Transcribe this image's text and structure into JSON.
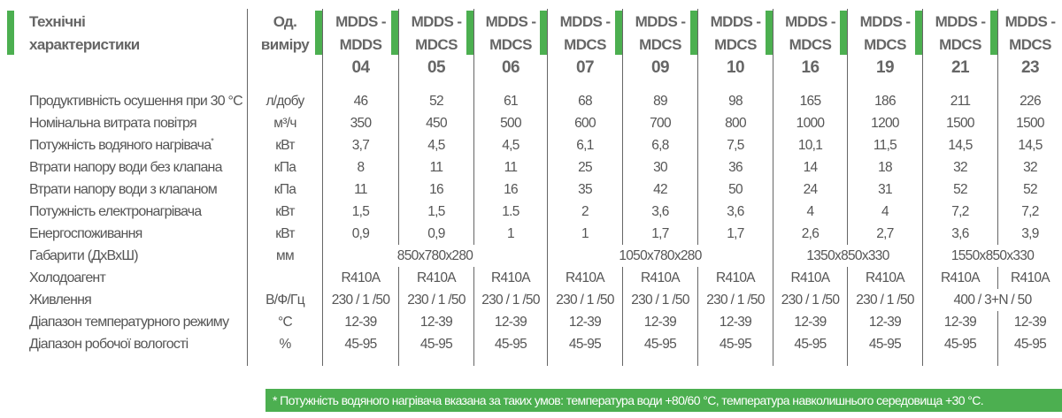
{
  "header": {
    "title": "Технічні характеристики",
    "unit": "Од. виміру",
    "models": [
      {
        "l1": "MDDS -",
        "l2": "MDDS",
        "n": "04"
      },
      {
        "l1": "MDDS -",
        "l2": "MDCS",
        "n": "05"
      },
      {
        "l1": "MDDS -",
        "l2": "MDCS",
        "n": "06"
      },
      {
        "l1": "MDDS -",
        "l2": "MDCS",
        "n": "07"
      },
      {
        "l1": "MDDS -",
        "l2": "MDCS",
        "n": "09"
      },
      {
        "l1": "MDDS -",
        "l2": "MDCS",
        "n": "10"
      },
      {
        "l1": "MDDS -",
        "l2": "MDCS",
        "n": "16"
      },
      {
        "l1": "MDDS -",
        "l2": "MDCS",
        "n": "19"
      },
      {
        "l1": "MDDS -",
        "l2": "MDCS",
        "n": "21"
      },
      {
        "l1": "MDDS -",
        "l2": "MDCS",
        "n": "23"
      }
    ]
  },
  "rows": [
    {
      "label": "Продуктивність осушення при 30 °С",
      "unit": "л/добу",
      "cells": [
        {
          "v": "46"
        },
        {
          "v": "52"
        },
        {
          "v": "61"
        },
        {
          "v": "68"
        },
        {
          "v": "89"
        },
        {
          "v": "98"
        },
        {
          "v": "165"
        },
        {
          "v": "186"
        },
        {
          "v": "211"
        },
        {
          "v": "226"
        }
      ]
    },
    {
      "label": "Номінальна витрата повітря",
      "unit": "м³/ч",
      "cells": [
        {
          "v": "350"
        },
        {
          "v": "450"
        },
        {
          "v": "500"
        },
        {
          "v": "600"
        },
        {
          "v": "700"
        },
        {
          "v": "800"
        },
        {
          "v": "1000"
        },
        {
          "v": "1200"
        },
        {
          "v": "1500"
        },
        {
          "v": "1500"
        }
      ]
    },
    {
      "label": "Потужність водяного нагрівача*",
      "unit": "кВт",
      "cells": [
        {
          "v": "3,7"
        },
        {
          "v": "4,5"
        },
        {
          "v": "4,5"
        },
        {
          "v": "6,1"
        },
        {
          "v": "6,8"
        },
        {
          "v": "7,5"
        },
        {
          "v": "10,1"
        },
        {
          "v": "11,5"
        },
        {
          "v": "14,5"
        },
        {
          "v": "14,5"
        }
      ]
    },
    {
      "label": "Втрати напору води без клапана",
      "unit": "кПа",
      "cells": [
        {
          "v": "8"
        },
        {
          "v": "11"
        },
        {
          "v": "11"
        },
        {
          "v": "25"
        },
        {
          "v": "30"
        },
        {
          "v": "36"
        },
        {
          "v": "14"
        },
        {
          "v": "18"
        },
        {
          "v": "32"
        },
        {
          "v": "32"
        }
      ]
    },
    {
      "label": "Втрати напору води з клапаном",
      "unit": "кПа",
      "cells": [
        {
          "v": "11"
        },
        {
          "v": "16"
        },
        {
          "v": "16"
        },
        {
          "v": "35"
        },
        {
          "v": "42"
        },
        {
          "v": "50"
        },
        {
          "v": "24"
        },
        {
          "v": "31"
        },
        {
          "v": "52"
        },
        {
          "v": "52"
        }
      ]
    },
    {
      "label": "Потужність електронагрівача",
      "unit": "кВт",
      "cells": [
        {
          "v": "1,5"
        },
        {
          "v": "1,5"
        },
        {
          "v": "1.5"
        },
        {
          "v": "2"
        },
        {
          "v": "3,6"
        },
        {
          "v": "3,6"
        },
        {
          "v": "4"
        },
        {
          "v": "4"
        },
        {
          "v": "7,2"
        },
        {
          "v": "7,2"
        }
      ]
    },
    {
      "label": "Енергоспоживання",
      "unit": "кВт",
      "cells": [
        {
          "v": "0,9"
        },
        {
          "v": "0,9"
        },
        {
          "v": "1"
        },
        {
          "v": "1"
        },
        {
          "v": "1,7"
        },
        {
          "v": "1,7"
        },
        {
          "v": "2,6"
        },
        {
          "v": "2,7"
        },
        {
          "v": "3,6"
        },
        {
          "v": "3,9"
        }
      ]
    },
    {
      "label": "Габарити (ДхВхШ)",
      "unit": "мм",
      "cells": [
        {
          "v": "850x780x280",
          "span": 3
        },
        {
          "v": "1050x780x280",
          "span": 3
        },
        {
          "v": "1350x850x330",
          "span": 2
        },
        {
          "v": "1550x850x330",
          "span": 2
        }
      ]
    },
    {
      "label": "Холодоагент",
      "unit": "",
      "cells": [
        {
          "v": "R410A"
        },
        {
          "v": "R410A"
        },
        {
          "v": "R410A"
        },
        {
          "v": "R410A"
        },
        {
          "v": "R410A"
        },
        {
          "v": "R410A"
        },
        {
          "v": "R410A"
        },
        {
          "v": "R410A"
        },
        {
          "v": "R410A"
        },
        {
          "v": "R410A"
        }
      ]
    },
    {
      "label": "Живлення",
      "unit": "В/Ф/Гц",
      "cells": [
        {
          "v": "230 / 1 /50"
        },
        {
          "v": "230 / 1 /50"
        },
        {
          "v": "230 / 1 /50"
        },
        {
          "v": "230 / 1 /50"
        },
        {
          "v": "230 / 1 /50"
        },
        {
          "v": "230 / 1 /50"
        },
        {
          "v": "230 / 1 /50"
        },
        {
          "v": "230 / 1 /50"
        },
        {
          "v": "400 / 3+N / 50",
          "span": 2
        }
      ]
    },
    {
      "label": "Діапазон температурного режиму",
      "unit": "°С",
      "cells": [
        {
          "v": "12-39"
        },
        {
          "v": "12-39"
        },
        {
          "v": "12-39"
        },
        {
          "v": "12-39"
        },
        {
          "v": "12-39"
        },
        {
          "v": "12-39"
        },
        {
          "v": "12-39"
        },
        {
          "v": "12-39"
        },
        {
          "v": "12-39"
        },
        {
          "v": "12-39"
        }
      ]
    },
    {
      "label": "Діапазон робочої вологості",
      "unit": "%",
      "cells": [
        {
          "v": "45-95"
        },
        {
          "v": "45-95"
        },
        {
          "v": "45-95"
        },
        {
          "v": "45-95"
        },
        {
          "v": "45-95"
        },
        {
          "v": "45-95"
        },
        {
          "v": "45-95"
        },
        {
          "v": "45-95"
        },
        {
          "v": "45-95"
        },
        {
          "v": "45-95"
        }
      ]
    }
  ],
  "footnote": "* Потужність водяного нагрівача вказана за таких умов: температура води +80/60 °С, температура навколишнього середовища +30 °С.",
  "colors": {
    "accent": "#4caf50",
    "text": "#555555"
  }
}
